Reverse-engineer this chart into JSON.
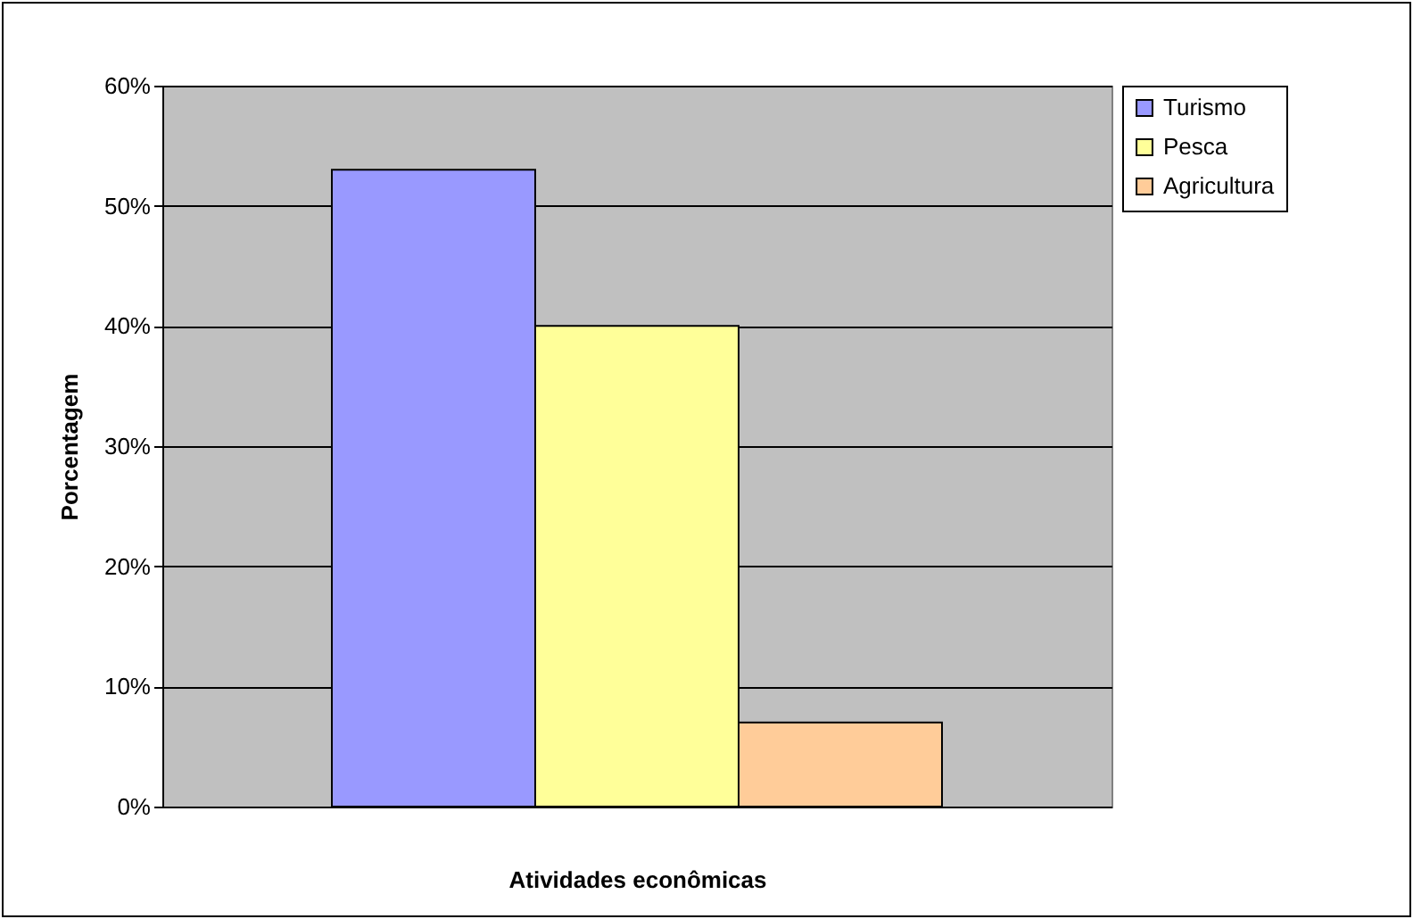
{
  "chart_data": {
    "type": "bar",
    "categories": [
      null
    ],
    "xlabel": "Atividades econômicas",
    "ylabel": "Porcentagem",
    "series": [
      {
        "name": "Turismo",
        "color": "#9999ff",
        "values": [
          53
        ]
      },
      {
        "name": "Pesca",
        "color": "#ffff99",
        "values": [
          40
        ]
      },
      {
        "name": "Agricultura",
        "color": "#ffcc99",
        "values": [
          7
        ]
      }
    ],
    "ylim": [
      0,
      60
    ],
    "yticks": [
      {
        "value": 0,
        "label": "0%"
      },
      {
        "value": 10,
        "label": "10%"
      },
      {
        "value": 20,
        "label": "20%"
      },
      {
        "value": 30,
        "label": "30%"
      },
      {
        "value": 40,
        "label": "40%"
      },
      {
        "value": 50,
        "label": "50%"
      },
      {
        "value": 60,
        "label": "60%"
      }
    ],
    "grid": "y",
    "legend": "right"
  }
}
